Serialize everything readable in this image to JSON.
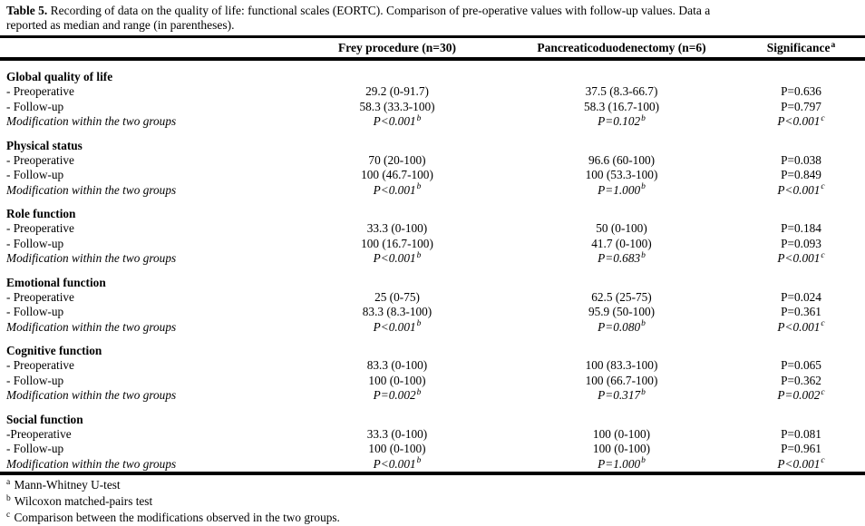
{
  "caption": {
    "label": "Table 5.",
    "line1": "Recording of data on the quality of life: functional scales (EORTC). Comparison of pre-operative values with follow-up values. Data a",
    "line2": "reported as median and range (in parentheses)."
  },
  "table": {
    "columns": [
      {
        "label": ""
      },
      {
        "label": "Frey procedure (n=30)",
        "sup": ""
      },
      {
        "label": "Pancreaticoduodenectomy (n=6)",
        "sup": ""
      },
      {
        "label": "Significance",
        "sup": "a"
      }
    ],
    "sections": [
      {
        "title": "Global quality of life",
        "rows": [
          {
            "label": "- Preoperative",
            "italic": false,
            "cells": [
              {
                "t": "29.2 (0-91.7)",
                "s": ""
              },
              {
                "t": "37.5 (8.3-66.7)",
                "s": ""
              },
              {
                "t": "P=0.636",
                "s": ""
              }
            ]
          },
          {
            "label": "- Follow-up",
            "italic": false,
            "cells": [
              {
                "t": "58.3 (33.3-100)",
                "s": ""
              },
              {
                "t": "58.3 (16.7-100)",
                "s": ""
              },
              {
                "t": "P=0.797",
                "s": ""
              }
            ]
          },
          {
            "label": "Modification within the two groups",
            "italic": true,
            "cells": [
              {
                "t": "P<0.001",
                "s": "b"
              },
              {
                "t": "P=0.102",
                "s": "b"
              },
              {
                "t": "P<0.001",
                "s": "c"
              }
            ]
          }
        ]
      },
      {
        "title": "Physical status",
        "rows": [
          {
            "label": "- Preoperative",
            "italic": false,
            "cells": [
              {
                "t": "70 (20-100)",
                "s": ""
              },
              {
                "t": "96.6 (60-100)",
                "s": ""
              },
              {
                "t": "P=0.038",
                "s": ""
              }
            ]
          },
          {
            "label": "- Follow-up",
            "italic": false,
            "cells": [
              {
                "t": "100 (46.7-100)",
                "s": ""
              },
              {
                "t": "100 (53.3-100)",
                "s": ""
              },
              {
                "t": "P=0.849",
                "s": ""
              }
            ]
          },
          {
            "label": "Modification within the two groups",
            "italic": true,
            "cells": [
              {
                "t": "P<0.001",
                "s": "b"
              },
              {
                "t": "P=1.000",
                "s": "b"
              },
              {
                "t": "P<0.001",
                "s": "c"
              }
            ]
          }
        ]
      },
      {
        "title": "Role function",
        "rows": [
          {
            "label": "- Preoperative",
            "italic": false,
            "cells": [
              {
                "t": "33.3 (0-100)",
                "s": ""
              },
              {
                "t": "50 (0-100)",
                "s": ""
              },
              {
                "t": "P=0.184",
                "s": ""
              }
            ]
          },
          {
            "label": "- Follow-up",
            "italic": false,
            "cells": [
              {
                "t": "100 (16.7-100)",
                "s": ""
              },
              {
                "t": "41.7 (0-100)",
                "s": ""
              },
              {
                "t": "P=0.093",
                "s": ""
              }
            ]
          },
          {
            "label": "Modification within the two groups",
            "italic": true,
            "cells": [
              {
                "t": "P<0.001",
                "s": "b"
              },
              {
                "t": "P=0.683",
                "s": "b"
              },
              {
                "t": "P<0.001",
                "s": "c"
              }
            ]
          }
        ]
      },
      {
        "title": "Emotional function",
        "rows": [
          {
            "label": "- Preoperative",
            "italic": false,
            "cells": [
              {
                "t": "25 (0-75)",
                "s": ""
              },
              {
                "t": "62.5 (25-75)",
                "s": ""
              },
              {
                "t": "P=0.024",
                "s": ""
              }
            ]
          },
          {
            "label": "- Follow-up",
            "italic": false,
            "cells": [
              {
                "t": "83.3 (8.3-100)",
                "s": ""
              },
              {
                "t": "95.9 (50-100)",
                "s": ""
              },
              {
                "t": "P=0.361",
                "s": ""
              }
            ]
          },
          {
            "label": "Modification within the two groups",
            "italic": true,
            "cells": [
              {
                "t": "P<0.001",
                "s": "b"
              },
              {
                "t": "P=0.080",
                "s": "b"
              },
              {
                "t": "P<0.001",
                "s": "c"
              }
            ]
          }
        ]
      },
      {
        "title": "Cognitive function",
        "rows": [
          {
            "label": "- Preoperative",
            "italic": false,
            "cells": [
              {
                "t": "83.3 (0-100)",
                "s": ""
              },
              {
                "t": "100 (83.3-100)",
                "s": ""
              },
              {
                "t": "P=0.065",
                "s": ""
              }
            ]
          },
          {
            "label": "- Follow-up",
            "italic": false,
            "cells": [
              {
                "t": "100 (0-100)",
                "s": ""
              },
              {
                "t": "100 (66.7-100)",
                "s": ""
              },
              {
                "t": "P=0.362",
                "s": ""
              }
            ]
          },
          {
            "label": "Modification within the two groups",
            "italic": true,
            "cells": [
              {
                "t": "P=0.002",
                "s": "b"
              },
              {
                "t": "P=0.317",
                "s": "b"
              },
              {
                "t": "P=0.002",
                "s": "c"
              }
            ]
          }
        ]
      },
      {
        "title": "Social function",
        "rows": [
          {
            "label": "-Preoperative",
            "italic": false,
            "cells": [
              {
                "t": "33.3 (0-100)",
                "s": ""
              },
              {
                "t": "100 (0-100)",
                "s": ""
              },
              {
                "t": "P=0.081",
                "s": ""
              }
            ]
          },
          {
            "label": "- Follow-up",
            "italic": false,
            "cells": [
              {
                "t": "100 (0-100)",
                "s": ""
              },
              {
                "t": "100 (0-100)",
                "s": ""
              },
              {
                "t": "P=0.961",
                "s": ""
              }
            ]
          },
          {
            "label": "Modification within the two groups",
            "italic": true,
            "cells": [
              {
                "t": "P<0.001",
                "s": "b"
              },
              {
                "t": "P=1.000",
                "s": "b"
              },
              {
                "t": "P<0.001",
                "s": "c"
              }
            ]
          }
        ]
      }
    ]
  },
  "footnotes": [
    {
      "sup": "a",
      "text": "Mann-Whitney U-test"
    },
    {
      "sup": "b",
      "text": "Wilcoxon matched-pairs test"
    },
    {
      "sup": "c",
      "text": "Comparison between the modifications observed in the two groups."
    }
  ]
}
